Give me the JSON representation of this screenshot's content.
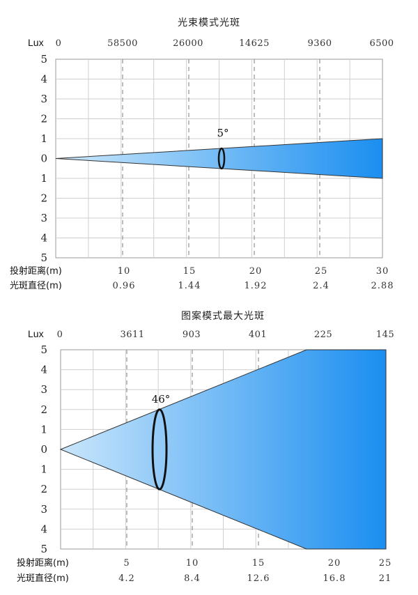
{
  "chart_data": [
    {
      "type": "beam-diagram",
      "title": "光束模式光斑",
      "lux_label": "Lux",
      "lux_values": [
        "0",
        "58500",
        "26000",
        "14625",
        "9360",
        "6500"
      ],
      "y_ticks": [
        "5",
        "4",
        "3",
        "2",
        "1",
        "0",
        "1",
        "2",
        "3",
        "4",
        "5"
      ],
      "ylim": [
        -5,
        5
      ],
      "beam_angle_label": "5°",
      "beam_half_height_at_end": 1,
      "spot_position_fraction": 0.5,
      "distance_label": "投射距离(m)",
      "distances": [
        "10",
        "15",
        "20",
        "25",
        "30"
      ],
      "diameter_label": "光斑直径(m)",
      "diameters": [
        "0.96",
        "1.44",
        "1.92",
        "2.4",
        "2.88"
      ],
      "gradient": [
        "#cde9fb",
        "#1b8ef0"
      ]
    },
    {
      "type": "beam-diagram",
      "title": "图案模式最大光斑",
      "lux_label": "Lux",
      "lux_values": [
        "0",
        "3611",
        "903",
        "401",
        "225",
        "145"
      ],
      "y_ticks": [
        "5",
        "4",
        "3",
        "2",
        "1",
        "0",
        "1",
        "2",
        "3",
        "4",
        "5"
      ],
      "ylim": [
        -5,
        5
      ],
      "beam_angle_label": "46°",
      "beam_half_height_at_end": 5,
      "spot_half_height": 2,
      "distance_label": "投射距离(m)",
      "distances": [
        "5",
        "10",
        "15",
        "20",
        "25"
      ],
      "diameter_label": "光斑直径(m)",
      "diameters": [
        "4.2",
        "8.4",
        "12.6",
        "16.8",
        "21"
      ],
      "gradient": [
        "#c9e6fb",
        "#1b8ef0"
      ]
    }
  ]
}
